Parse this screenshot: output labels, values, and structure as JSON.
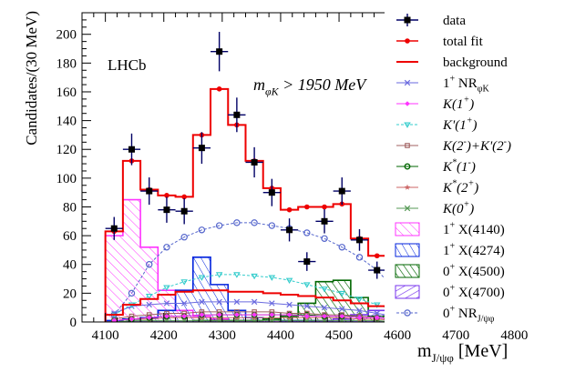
{
  "chart_data": {
    "type": "histogram",
    "experiment_label": "LHCb",
    "cut_label": "m_{φK} > 1950 MeV",
    "xlabel": "m_{J/ψφ} [MeV]",
    "ylabel": "Candidates/(30 MeV)",
    "xlim": [
      4060,
      4840
    ],
    "ylim": [
      0,
      215
    ],
    "x_ticks": [
      4100,
      4200,
      4300,
      4400,
      4500,
      4600,
      4700,
      4800
    ],
    "y_ticks": [
      0,
      20,
      40,
      60,
      80,
      100,
      120,
      140,
      160,
      180,
      200
    ],
    "bin_width": 30,
    "bin_centers": [
      4115,
      4145,
      4175,
      4205,
      4235,
      4265,
      4295,
      4325,
      4355,
      4385,
      4415,
      4445,
      4475,
      4505,
      4535,
      4565,
      4595,
      4625,
      4655
    ],
    "data": {
      "name": "data",
      "values": [
        65,
        120,
        91,
        78,
        77,
        121,
        188,
        144,
        111,
        90,
        64,
        42,
        70,
        91,
        57,
        36,
        18,
        10,
        6
      ],
      "errors": [
        8,
        11,
        9.5,
        9,
        9,
        11,
        13.7,
        12,
        10.5,
        9.5,
        8,
        6.5,
        8.4,
        9.5,
        7.5,
        6,
        4.2,
        3.2,
        2.5
      ]
    },
    "total_fit": {
      "name": "total fit",
      "values": [
        63,
        112,
        92,
        88,
        87,
        130,
        162,
        137,
        112,
        93,
        78,
        80,
        80,
        82,
        58,
        46,
        20,
        10,
        2
      ]
    },
    "background": {
      "name": "background",
      "values": [
        5,
        12,
        16,
        19,
        21,
        22,
        22,
        21,
        21,
        20,
        19,
        18,
        17,
        15,
        13,
        11,
        8,
        5,
        2
      ]
    },
    "series": [
      {
        "name": "1+ NR_φK",
        "color": "#6a6adf",
        "marker": "x",
        "values": [
          6,
          11,
          12,
          13,
          13,
          14,
          14,
          14,
          14,
          13,
          12,
          11,
          10,
          9,
          8,
          6,
          4,
          2,
          1
        ]
      },
      {
        "name": "K(1+)",
        "color": "#ff33ff",
        "marker": "diamond",
        "values": [
          1,
          2,
          3,
          4,
          4,
          5,
          5,
          5,
          5,
          5,
          5,
          4,
          4,
          4,
          3,
          3,
          2,
          1,
          0
        ]
      },
      {
        "name": "K'(1+)",
        "color": "#33cccc",
        "marker": "triangle-down",
        "values": [
          5,
          12,
          18,
          24,
          28,
          31,
          33,
          33,
          32,
          31,
          29,
          26,
          23,
          20,
          16,
          12,
          8,
          4,
          1
        ]
      },
      {
        "name": "K(2-)+K'(2-)",
        "color": "#a06060",
        "marker": "square",
        "values": [
          2,
          4,
          5,
          6,
          6,
          7,
          7,
          7,
          7,
          7,
          6,
          6,
          5,
          5,
          4,
          3,
          2,
          1,
          0
        ]
      },
      {
        "name": "K*(1-)",
        "color": "#006600",
        "marker": "circle",
        "values": [
          1,
          2,
          3,
          4,
          4,
          5,
          5,
          5,
          5,
          5,
          5,
          5,
          4,
          4,
          4,
          3,
          2,
          1,
          0
        ]
      },
      {
        "name": "K*(2+)",
        "color": "#cc6666",
        "marker": "star",
        "values": [
          1,
          2,
          2,
          3,
          3,
          3,
          3,
          3,
          3,
          3,
          3,
          3,
          3,
          3,
          2,
          2,
          1,
          1,
          0
        ]
      },
      {
        "name": "K(0+)",
        "color": "#559955",
        "marker": "x",
        "values": [
          0,
          1,
          1,
          1,
          1,
          1,
          1,
          1,
          1,
          1,
          1,
          1,
          1,
          1,
          1,
          1,
          0,
          0,
          0
        ]
      },
      {
        "name": "1+ X(4140)",
        "color": "#ff33ff",
        "style": "hatched",
        "values": [
          60,
          85,
          52,
          22,
          8,
          4,
          2,
          1,
          1,
          0,
          0,
          0,
          0,
          0,
          0,
          0,
          0,
          0,
          0
        ]
      },
      {
        "name": "1+ X(4274)",
        "color": "#0022dd",
        "style": "hatched",
        "values": [
          1,
          2,
          3,
          8,
          22,
          45,
          26,
          8,
          3,
          2,
          1,
          1,
          0,
          0,
          0,
          0,
          0,
          0,
          0
        ]
      },
      {
        "name": "0+ X(4500)",
        "color": "#006600",
        "style": "hatched",
        "values": [
          0,
          0,
          0,
          0,
          0,
          1,
          1,
          1,
          1,
          2,
          4,
          13,
          28,
          29,
          17,
          4,
          1,
          0,
          0
        ]
      },
      {
        "name": "0+ X(4700)",
        "color": "#7733ee",
        "style": "hatched",
        "values": [
          0,
          0,
          0,
          0,
          0,
          0,
          0,
          0,
          0,
          0,
          0,
          0,
          1,
          2,
          5,
          8,
          10,
          5,
          1
        ]
      },
      {
        "name": "0+ NR_J/ψφ",
        "color": "#5566cc",
        "marker": "open-circle",
        "values": [
          5,
          20,
          40,
          52,
          59,
          64,
          67,
          69,
          69,
          67,
          65,
          62,
          58,
          52,
          45,
          36,
          23,
          11,
          2
        ]
      }
    ],
    "legend": {
      "placement": "right",
      "entries": [
        "data",
        "total fit",
        "background",
        "1+ NR_φK",
        "K(1+)",
        "K'(1+)",
        "K(2-)+K'(2-)",
        "K*(1-)",
        "K*(2+)",
        "K(0+)",
        "1+ X(4140)",
        "1+ X(4274)",
        "0+ X(4500)",
        "0+ X(4700)",
        "0+ NR_J/ψφ"
      ]
    }
  }
}
